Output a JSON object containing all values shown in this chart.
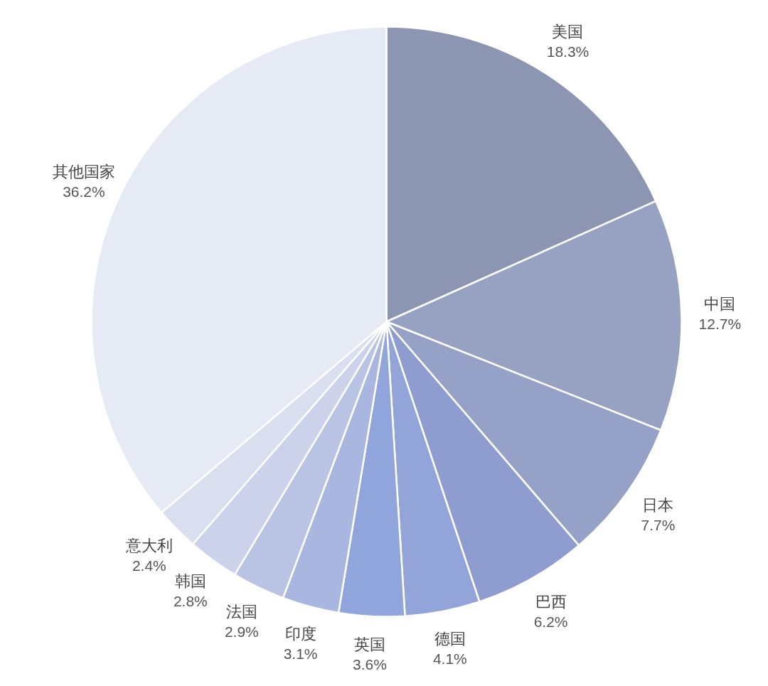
{
  "chart_data": {
    "type": "pie",
    "categories": [
      "美国",
      "中国",
      "日本",
      "巴西",
      "德国",
      "英国",
      "印度",
      "法国",
      "韩国",
      "意大利",
      "其他国家"
    ],
    "values": [
      18.3,
      12.7,
      7.7,
      6.2,
      4.1,
      3.6,
      3.1,
      2.9,
      2.8,
      2.4,
      36.2
    ],
    "value_labels": [
      "18.3%",
      "12.7%",
      "7.7%",
      "6.2%",
      "4.1%",
      "3.6%",
      "3.1%",
      "2.9%",
      "2.8%",
      "2.4%",
      "36.2%"
    ],
    "colors": [
      "#8c95b2",
      "#97a2c3",
      "#95a1c7",
      "#8e9cd0",
      "#93a4d8",
      "#8fa5dc",
      "#a9b6e0",
      "#b9c3e3",
      "#cbd2ea",
      "#d9dfef",
      "#e6eaf5"
    ]
  }
}
